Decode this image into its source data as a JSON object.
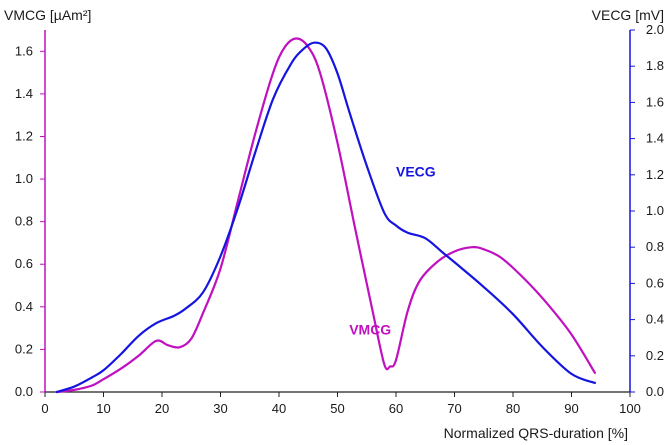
{
  "chart_data": {
    "type": "line",
    "left_axis_title": "VMCG [µAm²]",
    "right_axis_title": "VECG [mV]",
    "xlabel": "Normalized QRS-duration [%]",
    "xlim": [
      0,
      100
    ],
    "ylim_left": [
      0,
      1.7
    ],
    "ylim_right": [
      0,
      2.0
    ],
    "x_ticks": [
      "0",
      "10",
      "20",
      "30",
      "40",
      "50",
      "60",
      "70",
      "80",
      "90",
      "100"
    ],
    "y_left_ticks": [
      "0.0",
      "0.2",
      "0.4",
      "0.6",
      "0.8",
      "1.0",
      "1.2",
      "1.4",
      "1.6"
    ],
    "y_right_ticks": [
      "0.0",
      "0.2",
      "0.4",
      "0.6",
      "0.8",
      "1.0",
      "1.2",
      "1.4",
      "1.6",
      "1.8",
      "2.0"
    ],
    "grid": false,
    "series": [
      {
        "name": "VMCG",
        "axis": "left",
        "color": "#c010c0",
        "x": [
          2,
          5,
          8,
          10,
          13,
          16,
          19,
          21,
          23,
          25,
          27,
          30,
          33,
          36,
          39,
          41,
          43,
          45,
          47,
          50,
          53,
          56,
          58,
          59,
          60,
          62,
          64,
          67,
          70,
          73,
          75,
          78,
          82,
          86,
          90,
          94
        ],
        "y": [
          0.0,
          0.01,
          0.03,
          0.06,
          0.11,
          0.17,
          0.24,
          0.22,
          0.21,
          0.25,
          0.37,
          0.58,
          0.9,
          1.22,
          1.5,
          1.62,
          1.66,
          1.62,
          1.5,
          1.17,
          0.77,
          0.38,
          0.13,
          0.12,
          0.15,
          0.38,
          0.52,
          0.61,
          0.66,
          0.68,
          0.67,
          0.63,
          0.53,
          0.41,
          0.27,
          0.09
        ]
      },
      {
        "name": "VECG",
        "axis": "right",
        "color": "#1515e0",
        "x": [
          2,
          5,
          8,
          10,
          13,
          16,
          19,
          22,
          24,
          27,
          30,
          33,
          36,
          39,
          42,
          44,
          46,
          48,
          50,
          52,
          55,
          58,
          60,
          62,
          65,
          68,
          71,
          75,
          80,
          85,
          90,
          94
        ],
        "y": [
          0.0,
          0.03,
          0.08,
          0.12,
          0.21,
          0.31,
          0.38,
          0.42,
          0.46,
          0.55,
          0.75,
          1.02,
          1.33,
          1.62,
          1.81,
          1.89,
          1.93,
          1.9,
          1.76,
          1.55,
          1.25,
          0.99,
          0.92,
          0.88,
          0.85,
          0.77,
          0.69,
          0.58,
          0.43,
          0.25,
          0.1,
          0.05
        ]
      }
    ],
    "annotations": [
      {
        "text": "VECG",
        "x": 60,
        "y_right": 1.19,
        "color": "#1515e0"
      },
      {
        "text": "VMCG",
        "x": 52,
        "y_left": 0.27,
        "color": "#c010c0"
      }
    ]
  }
}
